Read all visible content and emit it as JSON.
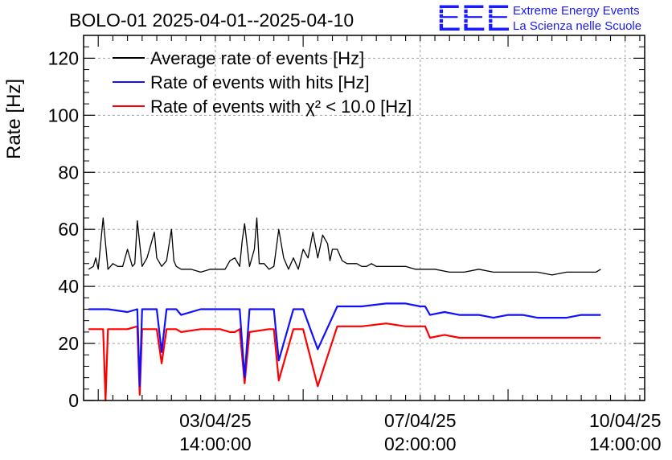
{
  "header": {
    "title": "BOLO-01 2025-04-01--2025-04-10",
    "logo_letters": "EEE",
    "logo_line1": "Extreme Energy Events",
    "logo_line2": "La Scienza nelle Scuole",
    "logo_color": "#1a1aff"
  },
  "chart_data": {
    "type": "line",
    "title": "BOLO-01 2025-04-01--2025-04-10",
    "ylabel": "Rate [Hz]",
    "xlabel": "",
    "ylim": [
      0,
      128
    ],
    "xlim": [
      "2025-04-01 08:00",
      "2025-04-10 22:00"
    ],
    "grid": true,
    "legend_position": "top-left",
    "y_ticks": [
      "0",
      "20",
      "40",
      "60",
      "80",
      "100",
      "120"
    ],
    "x_ticks": [
      {
        "date": "03/04/25",
        "time": "14:00:00",
        "x": "2025-04-03 14:00"
      },
      {
        "date": "07/04/25",
        "time": "02:00:00",
        "x": "2025-04-07 02:00"
      },
      {
        "date": "10/04/25",
        "time": "14:00:00",
        "x": "2025-04-10 14:00"
      }
    ],
    "series": [
      {
        "name": "Average rate of events [Hz]",
        "color": "#000000",
        "x": [
          "2025-04-01 10:00",
          "2025-04-01 12:00",
          "2025-04-01 13:00",
          "2025-04-01 14:00",
          "2025-04-01 16:00",
          "2025-04-01 18:00",
          "2025-04-01 19:00",
          "2025-04-01 20:00",
          "2025-04-01 22:00",
          "2025-04-02 00:00",
          "2025-04-02 02:00",
          "2025-04-02 04:00",
          "2025-04-02 05:00",
          "2025-04-02 06:00",
          "2025-04-02 08:00",
          "2025-04-02 10:00",
          "2025-04-02 12:00",
          "2025-04-02 13:00",
          "2025-04-02 14:00",
          "2025-04-02 16:00",
          "2025-04-02 18:00",
          "2025-04-02 20:00",
          "2025-04-02 21:00",
          "2025-04-02 22:00",
          "2025-04-03 00:00",
          "2025-04-03 04:00",
          "2025-04-03 08:00",
          "2025-04-03 12:00",
          "2025-04-03 16:00",
          "2025-04-03 18:00",
          "2025-04-03 20:00",
          "2025-04-03 22:00",
          "2025-04-04 00:00",
          "2025-04-04 01:00",
          "2025-04-04 02:00",
          "2025-04-04 04:00",
          "2025-04-04 06:00",
          "2025-04-04 07:00",
          "2025-04-04 08:00",
          "2025-04-04 10:00",
          "2025-04-04 12:00",
          "2025-04-04 14:00",
          "2025-04-04 16:00",
          "2025-04-04 18:00",
          "2025-04-04 20:00",
          "2025-04-04 22:00",
          "2025-04-05 00:00",
          "2025-04-05 02:00",
          "2025-04-05 04:00",
          "2025-04-05 06:00",
          "2025-04-05 08:00",
          "2025-04-05 10:00",
          "2025-04-05 12:00",
          "2025-04-05 13:00",
          "2025-04-05 14:00",
          "2025-04-05 16:00",
          "2025-04-05 18:00",
          "2025-04-05 20:00",
          "2025-04-05 22:00",
          "2025-04-06 00:00",
          "2025-04-06 02:00",
          "2025-04-06 04:00",
          "2025-04-06 06:00",
          "2025-04-06 08:00",
          "2025-04-06 12:00",
          "2025-04-06 16:00",
          "2025-04-06 20:00",
          "2025-04-07 00:00",
          "2025-04-07 04:00",
          "2025-04-07 08:00",
          "2025-04-07 14:00",
          "2025-04-07 20:00",
          "2025-04-08 02:00",
          "2025-04-08 08:00",
          "2025-04-08 14:00",
          "2025-04-08 20:00",
          "2025-04-09 02:00",
          "2025-04-09 08:00",
          "2025-04-09 14:00",
          "2025-04-09 20:00",
          "2025-04-10 02:00",
          "2025-04-10 04:00"
        ],
        "values": [
          46,
          47,
          50,
          46,
          64,
          46,
          47,
          48,
          47,
          47,
          53,
          47,
          48,
          63,
          47,
          50,
          56,
          59,
          50,
          47,
          49,
          60,
          49,
          47,
          46,
          46,
          45,
          46,
          46,
          46,
          49,
          50,
          47,
          56,
          62,
          47,
          53,
          64,
          48,
          48,
          46,
          47,
          60,
          50,
          46,
          50,
          46,
          53,
          50,
          59,
          50,
          58,
          55,
          49,
          53,
          53,
          49,
          48,
          48,
          48,
          47,
          47,
          48,
          47,
          47,
          47,
          47,
          46,
          46,
          46,
          45,
          45,
          46,
          45,
          45,
          45,
          45,
          44,
          45,
          45,
          45,
          46
        ]
      },
      {
        "name": "Rate of events with hits [Hz]",
        "color": "#1010ff",
        "x": [
          "2025-04-01 10:00",
          "2025-04-01 14:00",
          "2025-04-01 16:00",
          "2025-04-01 18:00",
          "2025-04-02 02:00",
          "2025-04-02 06:00",
          "2025-04-02 07:00",
          "2025-04-02 08:00",
          "2025-04-02 14:00",
          "2025-04-02 16:00",
          "2025-04-02 18:00",
          "2025-04-02 22:00",
          "2025-04-03 00:00",
          "2025-04-03 08:00",
          "2025-04-03 16:00",
          "2025-04-03 20:00",
          "2025-04-03 22:00",
          "2025-04-04 00:00",
          "2025-04-04 02:00",
          "2025-04-04 04:00",
          "2025-04-04 12:00",
          "2025-04-04 14:00",
          "2025-04-04 16:00",
          "2025-04-04 22:00",
          "2025-04-05 00:00",
          "2025-04-05 02:00",
          "2025-04-05 08:00",
          "2025-04-05 16:00",
          "2025-04-06 02:00",
          "2025-04-06 12:00",
          "2025-04-06 20:00",
          "2025-04-07 02:00",
          "2025-04-07 04:00",
          "2025-04-07 06:00",
          "2025-04-07 12:00",
          "2025-04-07 18:00",
          "2025-04-08 02:00",
          "2025-04-08 08:00",
          "2025-04-08 14:00",
          "2025-04-08 20:00",
          "2025-04-09 02:00",
          "2025-04-09 08:00",
          "2025-04-09 14:00",
          "2025-04-09 20:00",
          "2025-04-10 02:00",
          "2025-04-10 04:00"
        ],
        "values": [
          32,
          32,
          32,
          32,
          31,
          32,
          5,
          32,
          32,
          17,
          32,
          32,
          30,
          32,
          32,
          32,
          32,
          32,
          8,
          32,
          32,
          32,
          14,
          32,
          32,
          32,
          18,
          33,
          33,
          34,
          34,
          33,
          33,
          30,
          31,
          30,
          30,
          29,
          30,
          30,
          29,
          29,
          29,
          30,
          30,
          30
        ]
      },
      {
        "name": "Rate of events with χ² < 10.0 [Hz]",
        "color": "#ff0000",
        "x": [
          "2025-04-01 10:00",
          "2025-04-01 14:00",
          "2025-04-01 16:00",
          "2025-04-01 17:00",
          "2025-04-01 18:00",
          "2025-04-02 02:00",
          "2025-04-02 06:00",
          "2025-04-02 07:00",
          "2025-04-02 08:00",
          "2025-04-02 14:00",
          "2025-04-02 16:00",
          "2025-04-02 18:00",
          "2025-04-02 22:00",
          "2025-04-03 00:00",
          "2025-04-03 08:00",
          "2025-04-03 16:00",
          "2025-04-03 20:00",
          "2025-04-03 22:00",
          "2025-04-04 00:00",
          "2025-04-04 02:00",
          "2025-04-04 04:00",
          "2025-04-04 12:00",
          "2025-04-04 14:00",
          "2025-04-04 16:00",
          "2025-04-04 22:00",
          "2025-04-05 00:00",
          "2025-04-05 02:00",
          "2025-04-05 08:00",
          "2025-04-05 16:00",
          "2025-04-06 02:00",
          "2025-04-06 12:00",
          "2025-04-06 20:00",
          "2025-04-07 02:00",
          "2025-04-07 04:00",
          "2025-04-07 06:00",
          "2025-04-07 12:00",
          "2025-04-07 18:00",
          "2025-04-08 02:00",
          "2025-04-08 08:00",
          "2025-04-08 14:00",
          "2025-04-08 20:00",
          "2025-04-09 02:00",
          "2025-04-09 08:00",
          "2025-04-09 14:00",
          "2025-04-09 20:00",
          "2025-04-10 02:00",
          "2025-04-10 04:00"
        ],
        "values": [
          25,
          25,
          25,
          0,
          25,
          25,
          26,
          2,
          25,
          25,
          13,
          25,
          25,
          24,
          25,
          25,
          24,
          24,
          25,
          6,
          24,
          25,
          25,
          7,
          25,
          25,
          25,
          5,
          26,
          26,
          27,
          26,
          26,
          26,
          22,
          23,
          22,
          22,
          22,
          22,
          22,
          22,
          22,
          22,
          22,
          22,
          22
        ]
      }
    ]
  }
}
